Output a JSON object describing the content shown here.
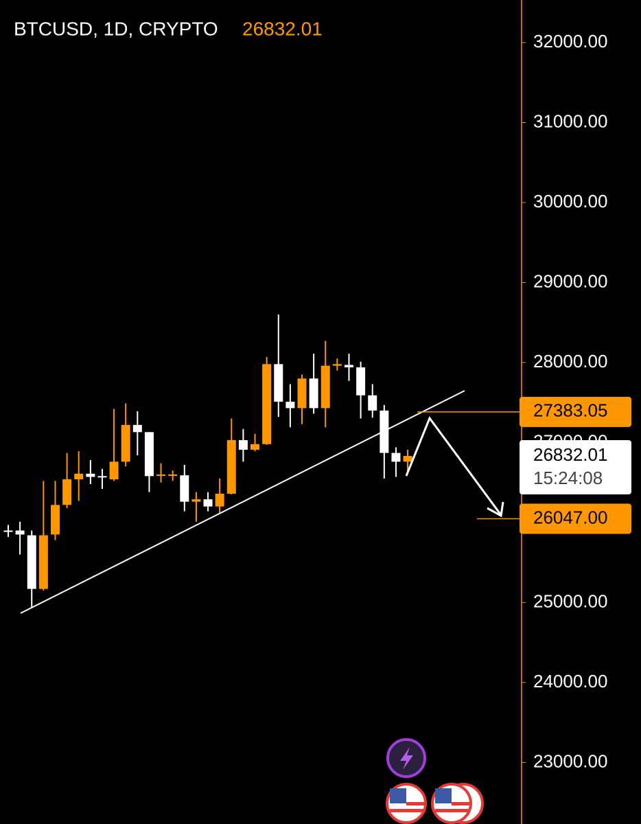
{
  "chart_data": {
    "type": "candlestick",
    "title": "BTCUSD, 1D, CRYPTO",
    "last_price_label": "26832.01",
    "countdown": "15:24:08",
    "up_color": "#ff9800",
    "down_color": "#ffffff",
    "open": [
      25900,
      25900,
      25840,
      25170,
      25850,
      26220,
      26540,
      26610,
      26580,
      26540,
      26760,
      27220,
      27130,
      26590,
      26590,
      26590,
      26260,
      26290,
      26200,
      26360,
      27030,
      26910,
      26980,
      27980,
      27510,
      27430,
      27800,
      27430,
      27960,
      27970,
      27940,
      27590,
      27400,
      26870,
      26760
    ],
    "high": [
      25970,
      26010,
      25900,
      26520,
      26520,
      26870,
      26890,
      26780,
      26670,
      27420,
      27490,
      27390,
      27130,
      26740,
      26650,
      26720,
      26380,
      26380,
      26550,
      27300,
      27170,
      27110,
      28070,
      28600,
      27730,
      27850,
      28110,
      28270,
      28050,
      28110,
      28010,
      27730,
      27470,
      26940,
      26910
    ],
    "low": [
      25820,
      25600,
      24940,
      25150,
      25780,
      26180,
      26270,
      26480,
      26420,
      26520,
      26700,
      26840,
      26380,
      26500,
      26520,
      26140,
      26010,
      26140,
      26110,
      26350,
      26760,
      26890,
      26970,
      27320,
      27190,
      27230,
      27360,
      27190,
      27900,
      27770,
      27300,
      27310,
      26550,
      26570,
      26610
    ],
    "close": [
      25890,
      25850,
      25170,
      25840,
      26220,
      26540,
      26610,
      26570,
      26570,
      26760,
      27220,
      27130,
      26580,
      26600,
      26600,
      26260,
      26290,
      26200,
      26360,
      27030,
      26910,
      26980,
      27980,
      27510,
      27430,
      27800,
      27430,
      27960,
      27980,
      27940,
      27590,
      27400,
      26870,
      26760,
      26832.01
    ],
    "price_lines": [
      {
        "value": 27383.05,
        "label": "27383.05"
      },
      {
        "value": 26047,
        "label": "26047.00"
      }
    ],
    "ylim": [
      22231,
      32532
    ],
    "yticks": [
      {
        "value": 23000,
        "label": "23000.00"
      },
      {
        "value": 24000,
        "label": "24000.00"
      },
      {
        "value": 25000,
        "label": "25000.00"
      },
      {
        "value": 27000,
        "label": "27000.00"
      },
      {
        "value": 28000,
        "label": "28000.00"
      },
      {
        "value": 29000,
        "label": "29000.00"
      },
      {
        "value": 30000,
        "label": "30000.00"
      },
      {
        "value": 31000,
        "label": "31000.00"
      },
      {
        "value": 32000,
        "label": "32000.00"
      }
    ]
  }
}
